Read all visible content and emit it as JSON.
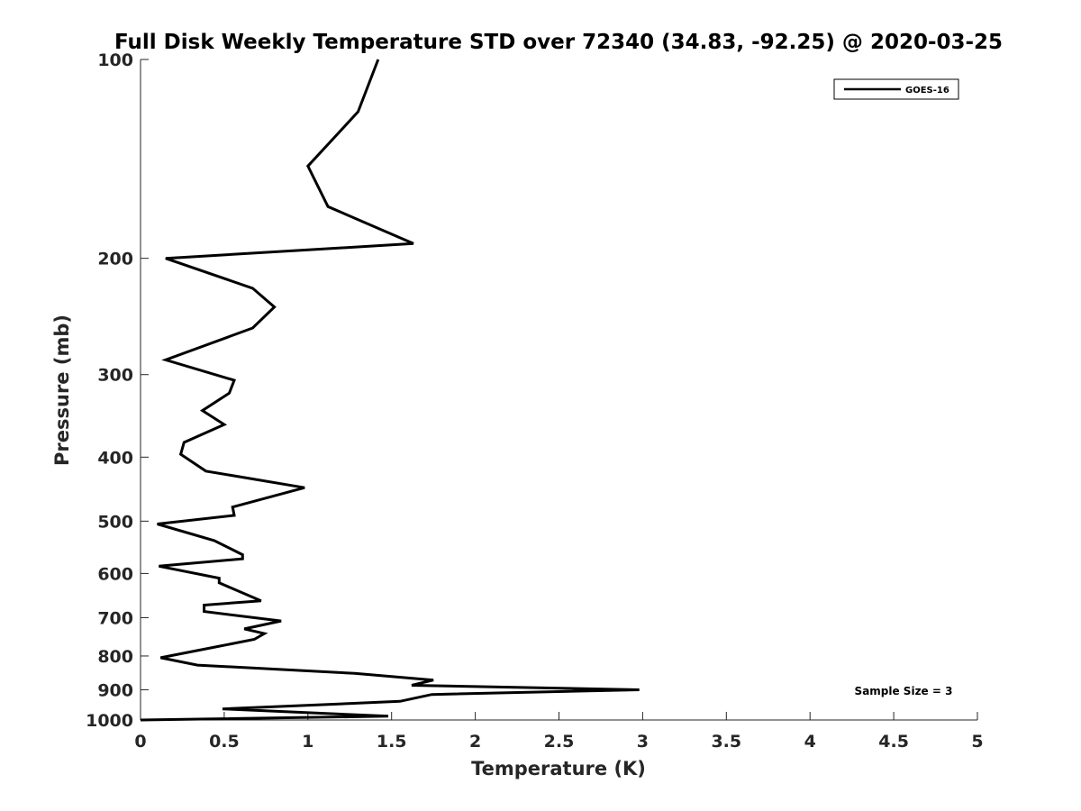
{
  "chart_data": {
    "type": "line",
    "title": "Full Disk Weekly Temperature STD over 72340 (34.83, -92.25) @ 2020-03-25",
    "xlabel": "Temperature (K)",
    "ylabel": "Pressure (mb)",
    "xlim": [
      0,
      5
    ],
    "ylim": [
      100,
      1000
    ],
    "yscale": "log",
    "y_reversed": true,
    "grid": false,
    "legend_position": "top-right",
    "x_ticks": [
      "0",
      "0.5",
      "1",
      "1.5",
      "2",
      "2.5",
      "3",
      "3.5",
      "4",
      "4.5",
      "5"
    ],
    "x_tick_values": [
      0,
      0.5,
      1,
      1.5,
      2,
      2.5,
      3,
      3.5,
      4,
      4.5,
      5
    ],
    "y_ticks": [
      "100",
      "200",
      "300",
      "400",
      "500",
      "600",
      "700",
      "800",
      "900",
      "1000"
    ],
    "y_tick_values": [
      100,
      200,
      300,
      400,
      500,
      600,
      700,
      800,
      900,
      1000
    ],
    "annotation": "Sample Size = 3",
    "line_color": "#000000",
    "series": [
      {
        "name": "GOES-16",
        "x": [
          1.42,
          1.3,
          1.0,
          1.12,
          1.63,
          0.15,
          0.67,
          0.8,
          0.67,
          0.15,
          0.56,
          0.53,
          0.37,
          0.5,
          0.26,
          0.24,
          0.39,
          0.98,
          0.55,
          0.56,
          0.1,
          0.44,
          0.61,
          0.61,
          0.11,
          0.47,
          0.47,
          0.72,
          0.38,
          0.38,
          0.84,
          0.62,
          0.74,
          0.68,
          0.45,
          0.12,
          0.34,
          1.28,
          1.75,
          1.62,
          2.98,
          1.74,
          1.55,
          0.49,
          1.48,
          0.0
        ],
        "y": [
          100,
          120,
          145,
          167,
          190,
          200,
          222,
          237,
          255,
          285,
          306,
          320,
          340,
          357,
          380,
          396,
          420,
          445,
          476,
          490,
          505,
          535,
          562,
          570,
          585,
          610,
          620,
          660,
          670,
          685,
          708,
          728,
          740,
          755,
          775,
          805,
          826,
          850,
          870,
          886,
          900,
          915,
          937,
          962,
          987,
          1000
        ]
      }
    ]
  }
}
